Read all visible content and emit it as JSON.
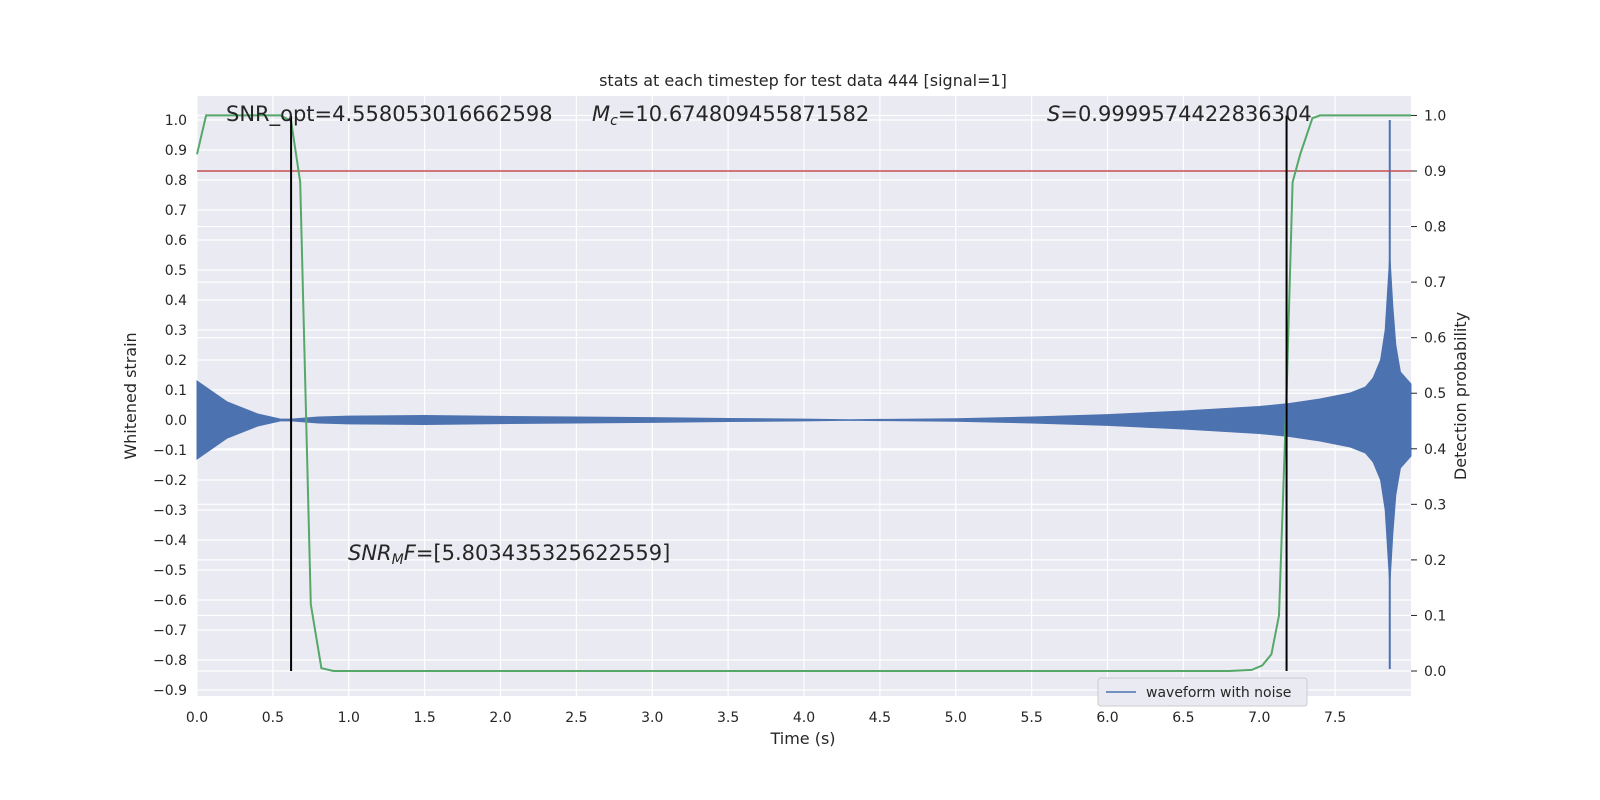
{
  "chart_data": {
    "type": "line",
    "title": "stats at each timestep for test data 444 [signal=1]",
    "xlabel": "Time (s)",
    "ylabel": "Whitened strain",
    "y2label": "Detection probability",
    "xlim": [
      0,
      8
    ],
    "ylim": [
      -0.92,
      1.08
    ],
    "y2lim": [
      -0.045,
      1.035
    ],
    "x_ticks": [
      "0.0",
      "0.5",
      "1.0",
      "1.5",
      "2.0",
      "2.5",
      "3.0",
      "3.5",
      "4.0",
      "4.5",
      "5.0",
      "5.5",
      "6.0",
      "6.5",
      "7.0",
      "7.5"
    ],
    "y_ticks": [
      "1.0",
      "0.9",
      "0.8",
      "0.7",
      "0.6",
      "0.5",
      "0.4",
      "0.3",
      "0.2",
      "0.1",
      "0.0",
      "−0.1",
      "−0.2",
      "−0.3",
      "−0.4",
      "−0.5",
      "−0.6",
      "−0.7",
      "−0.8",
      "−0.9"
    ],
    "y2_ticks": [
      "1.0",
      "0.9",
      "0.8",
      "0.7",
      "0.6",
      "0.5",
      "0.4",
      "0.3",
      "0.2",
      "0.1",
      "0.0"
    ],
    "grid": true,
    "legend": {
      "placement": "lower-right",
      "entries": [
        "waveform with noise"
      ]
    },
    "annotations": {
      "snr_opt": "SNR_opt=4.558053016662598",
      "mc_symbol": "M",
      "mc_sub": "c",
      "mc_value": "=10.674809455871582",
      "s_symbol": "S",
      "s_value": "=0.9999574422836304",
      "snrmf_prefix": "SNR",
      "snrmf_sub": "M",
      "snrmf_suffix": "F",
      "snrmf_value": "=[5.803435325622559]"
    },
    "threshold_line": {
      "y2": 0.9,
      "color": "#c44e52"
    },
    "vertical_lines": [
      0.62,
      7.18,
      7.85
    ],
    "series": [
      {
        "name": "waveform with noise",
        "color": "#4c72b0",
        "envelope_x": [
          0,
          0.2,
          0.4,
          0.55,
          0.62,
          0.8,
          1.0,
          1.5,
          2.0,
          2.5,
          3.0,
          3.5,
          4.0,
          4.3,
          4.5,
          5.0,
          5.5,
          6.0,
          6.5,
          7.0,
          7.2,
          7.4,
          7.6,
          7.7,
          7.75,
          7.8,
          7.83,
          7.86,
          7.88,
          7.9,
          7.93,
          8.0
        ],
        "envelope_amplitude": [
          0.13,
          0.06,
          0.02,
          0.003,
          0.003,
          0.01,
          0.013,
          0.015,
          0.012,
          0.01,
          0.008,
          0.005,
          0.003,
          0.001,
          0.002,
          0.004,
          0.01,
          0.018,
          0.03,
          0.045,
          0.055,
          0.07,
          0.09,
          0.11,
          0.14,
          0.2,
          0.3,
          0.55,
          0.38,
          0.25,
          0.16,
          0.12
        ]
      },
      {
        "name": "detection probability",
        "color": "#55a868",
        "axis": "right",
        "x": [
          0,
          0.06,
          0.55,
          0.62,
          0.68,
          0.75,
          0.82,
          0.9,
          1.2,
          6.8,
          6.95,
          7.02,
          7.08,
          7.13,
          7.18,
          7.22,
          7.27,
          7.35,
          7.4,
          7.5,
          8.0
        ],
        "y": [
          0.93,
          1.0,
          1.0,
          0.99,
          0.88,
          0.12,
          0.005,
          0.0,
          0.0,
          0.0,
          0.002,
          0.01,
          0.03,
          0.1,
          0.5,
          0.88,
          0.93,
          0.995,
          1.0,
          1.0,
          1.0
        ]
      }
    ]
  }
}
